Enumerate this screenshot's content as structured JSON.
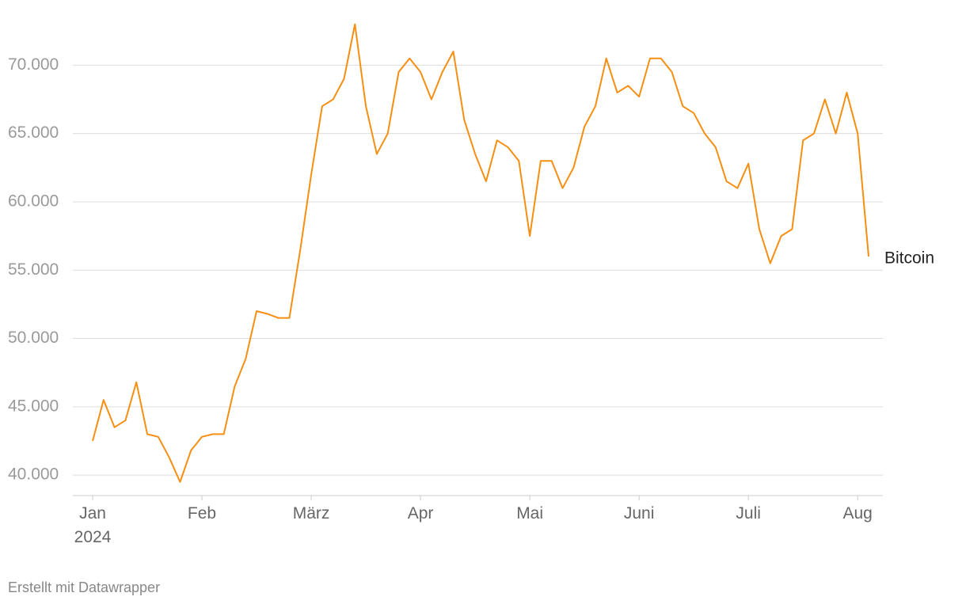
{
  "chart_data": {
    "type": "line",
    "categories": [
      "Jan 2024",
      null,
      null,
      null,
      null,
      null,
      null,
      null,
      null,
      null,
      "Feb",
      null,
      null,
      null,
      null,
      null,
      null,
      null,
      null,
      null,
      "März",
      null,
      null,
      null,
      null,
      null,
      null,
      null,
      null,
      null,
      "Apr",
      null,
      null,
      null,
      null,
      null,
      null,
      null,
      null,
      null,
      "Mai",
      null,
      null,
      null,
      null,
      null,
      null,
      null,
      null,
      null,
      "Juni",
      null,
      null,
      null,
      null,
      null,
      null,
      null,
      null,
      null,
      "Juli",
      null,
      null,
      null,
      null,
      null,
      null,
      null,
      null,
      null,
      "Aug",
      null
    ],
    "series": [
      {
        "name": "Bitcoin",
        "color": "#f68f11",
        "values": [
          42500,
          45500,
          43500,
          44000,
          46800,
          43000,
          42800,
          41300,
          39500,
          41800,
          42800,
          43000,
          43000,
          46500,
          48500,
          52000,
          51800,
          51500,
          51500,
          56500,
          62000,
          67000,
          67500,
          69000,
          73000,
          67000,
          63500,
          65000,
          69500,
          70500,
          69500,
          67500,
          69500,
          71000,
          66000,
          63500,
          61500,
          64500,
          64000,
          63000,
          57500,
          63000,
          63000,
          61000,
          62500,
          65500,
          67000,
          70500,
          68000,
          68500,
          67700,
          70500,
          70500,
          69500,
          67000,
          66500,
          65000,
          64000,
          61500,
          61000,
          62800,
          58000,
          55500,
          57500,
          58000,
          64500,
          65000,
          67500,
          65000,
          68000,
          65000,
          56000
        ]
      }
    ],
    "ylim": [
      38500,
      73500
    ],
    "yticks": [
      {
        "value": 40000,
        "label": "40.000"
      },
      {
        "value": 45000,
        "label": "45.000"
      },
      {
        "value": 50000,
        "label": "50.000"
      },
      {
        "value": 55000,
        "label": "55.000"
      },
      {
        "value": 60000,
        "label": "60.000"
      },
      {
        "value": 65000,
        "label": "65.000"
      },
      {
        "value": 70000,
        "label": "70.000"
      }
    ],
    "grid": true
  },
  "credit": "Erstellt mit Datawrapper"
}
